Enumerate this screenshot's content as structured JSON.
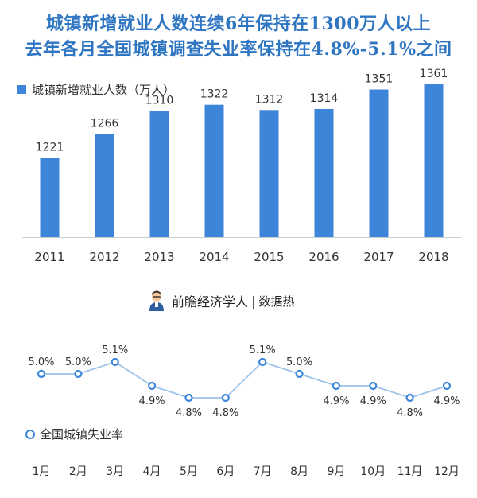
{
  "titles": {
    "line1": "城镇新增就业人数连续6年保持在1300万人以上",
    "line2": "去年各月全国城镇调查失业率保持在4.8%-5.1%之间"
  },
  "brand": {
    "name": "前瞻经济学人",
    "separator": "|",
    "source": "数据热"
  },
  "colors": {
    "bar": "#3d85d8",
    "line": "#9dc3eb",
    "marker": "#3d85d8",
    "title": "#2e75c2"
  },
  "chart_data": [
    {
      "type": "bar",
      "title": "",
      "legend": "城镇新增就业人数（万人）",
      "categories": [
        "2011",
        "2012",
        "2013",
        "2014",
        "2015",
        "2016",
        "2017",
        "2018"
      ],
      "values": [
        1221,
        1266,
        1310,
        1322,
        1312,
        1314,
        1351,
        1361
      ],
      "ylim": [
        1070,
        1370
      ],
      "grid": false
    },
    {
      "type": "line",
      "title": "",
      "legend": "全国城镇失业率",
      "categories": [
        "1月",
        "2月",
        "3月",
        "4月",
        "5月",
        "6月",
        "7月",
        "8月",
        "9月",
        "10月",
        "11月",
        "12月"
      ],
      "values": [
        5.0,
        5.0,
        5.1,
        4.9,
        4.8,
        4.8,
        5.1,
        5.0,
        4.9,
        4.9,
        4.8,
        4.9
      ],
      "labels": [
        "5.0%",
        "5.0%",
        "5.1%",
        "4.9%",
        "4.8%",
        "4.8%",
        "5.1%",
        "5.0%",
        "4.9%",
        "4.9%",
        "4.8%",
        "4.9%"
      ],
      "ylim": [
        4.6,
        5.3
      ],
      "grid": false
    }
  ]
}
